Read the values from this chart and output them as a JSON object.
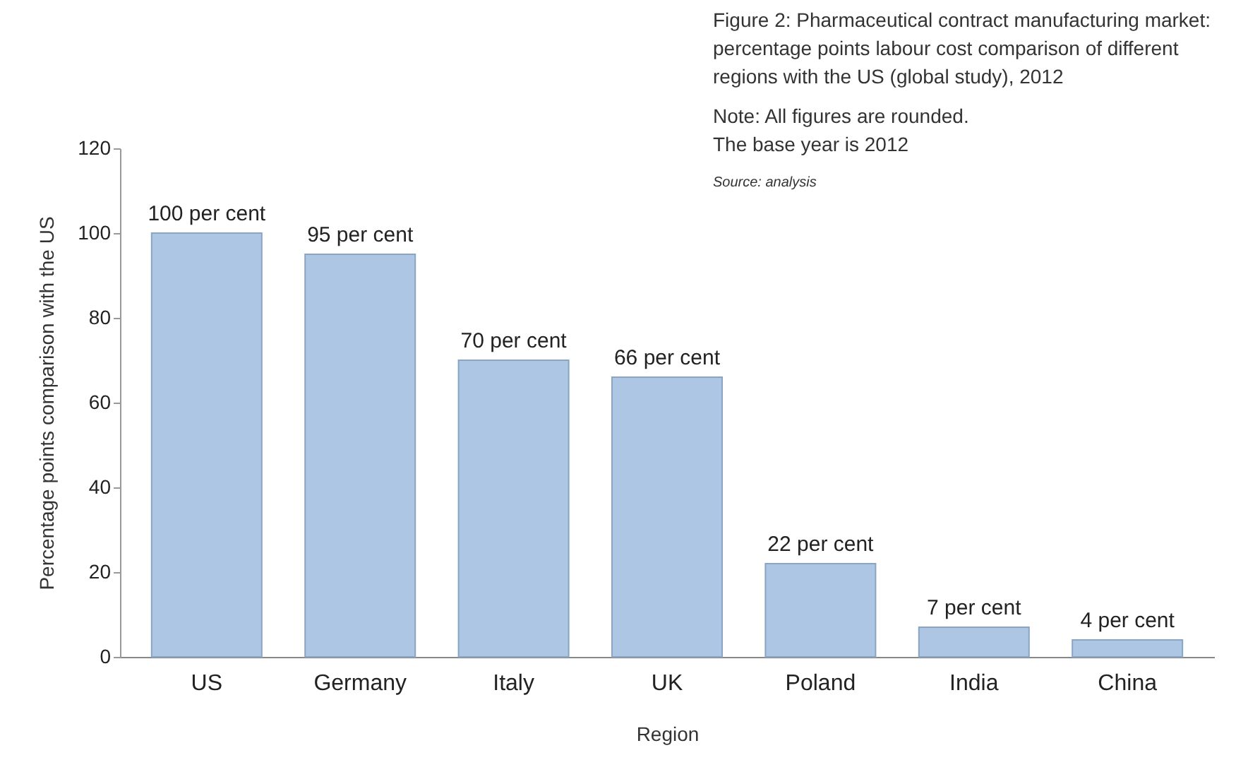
{
  "chart_data": {
    "type": "bar",
    "title": "Figure 2: Pharmaceutical contract manufacturing market: percentage points labour cost comparison of different regions with the US (global study), 2012",
    "xlabel": "Region",
    "ylabel": "Percentage points comparison with the US",
    "annotations": [
      "Note: All figures are rounded.\nThe base year is 2012",
      "Source: analysis"
    ],
    "categories": [
      "US",
      "Germany",
      "Italy",
      "UK",
      "Poland",
      "India",
      "China"
    ],
    "values": [
      100,
      95,
      70,
      66,
      22,
      7,
      4
    ],
    "value_labels": [
      "100 per cent",
      "95 per cent",
      "70 per cent",
      "66 per cent",
      "22 per cent",
      "7 per cent",
      "4 per cent"
    ],
    "color": "#adc6e3",
    "ylim": [
      0,
      120
    ],
    "yticks": [
      0,
      20,
      40,
      60,
      80,
      100,
      120
    ],
    "grid": false
  }
}
